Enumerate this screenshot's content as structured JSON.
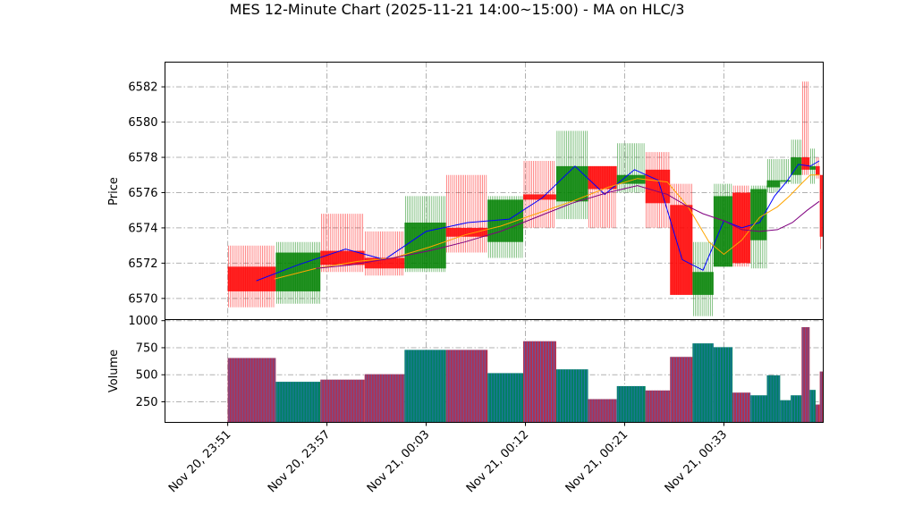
{
  "chart_data": {
    "title": "MES 12-Minute Chart (2025-11-21 14:00~15:00) - MA on HLC/3",
    "price_panel": {
      "type": "candlestick",
      "ylabel": "Price",
      "ylim": [
        6568.8,
        6583.4
      ],
      "yticks": [
        6570,
        6572,
        6574,
        6576,
        6578,
        6580,
        6582
      ],
      "grid": true
    },
    "volume_panel": {
      "type": "bar",
      "ylabel": "Volume",
      "ylim": [
        60,
        1010
      ],
      "yticks": [
        250,
        500,
        750,
        1000
      ],
      "grid": true
    },
    "xlim": [
      0,
      1
    ],
    "xticks": [
      {
        "label": "Nov 20, 23:51",
        "pos": 0.052
      },
      {
        "label": "Nov 20, 23:57",
        "pos": 0.2186
      },
      {
        "label": "Nov 21, 00:03",
        "pos": 0.3852
      },
      {
        "label": "Nov 21, 00:12",
        "pos": 0.5518
      },
      {
        "label": "Nov 21, 00:21",
        "pos": 0.7184
      },
      {
        "label": "Nov 21, 00:33",
        "pos": 0.885
      }
    ],
    "colors": {
      "up": "#008000",
      "down": "#ff0000",
      "ma_fast": "#0000ff",
      "ma_mid": "#ffa500",
      "ma_slow": "#800080",
      "vol_up": "#008060",
      "vol_down": "#b03050"
    },
    "candles": [
      {
        "x0": 0.052,
        "x1": 0.1327,
        "open": 6571.8,
        "high": 6573.0,
        "low": 6569.5,
        "close": 6570.4,
        "volume": 655
      },
      {
        "x0": 0.1327,
        "x1": 0.2076,
        "open": 6570.4,
        "high": 6573.2,
        "low": 6569.7,
        "close": 6572.6,
        "volume": 435
      },
      {
        "x0": 0.2076,
        "x1": 0.2818,
        "open": 6572.7,
        "high": 6574.8,
        "low": 6571.5,
        "close": 6571.9,
        "volume": 455
      },
      {
        "x0": 0.2818,
        "x1": 0.3489,
        "open": 6572.3,
        "high": 6573.8,
        "low": 6571.3,
        "close": 6571.7,
        "volume": 505
      },
      {
        "x0": 0.3489,
        "x1": 0.4185,
        "open": 6571.7,
        "high": 6575.8,
        "low": 6571.5,
        "close": 6574.3,
        "volume": 730
      },
      {
        "x0": 0.4185,
        "x1": 0.4883,
        "open": 6574.0,
        "high": 6577.0,
        "low": 6572.6,
        "close": 6573.5,
        "volume": 730
      },
      {
        "x0": 0.4883,
        "x1": 0.5481,
        "open": 6573.2,
        "high": 6575.8,
        "low": 6572.3,
        "close": 6575.6,
        "volume": 515
      },
      {
        "x0": 0.5481,
        "x1": 0.6035,
        "open": 6575.9,
        "high": 6577.8,
        "low": 6574.0,
        "close": 6575.6,
        "volume": 810
      },
      {
        "x0": 0.6035,
        "x1": 0.657,
        "open": 6575.5,
        "high": 6579.5,
        "low": 6574.5,
        "close": 6577.5,
        "volume": 550
      },
      {
        "x0": 0.657,
        "x1": 0.7053,
        "open": 6577.5,
        "high": 6577.5,
        "low": 6574.0,
        "close": 6576.2,
        "volume": 275
      },
      {
        "x0": 0.7053,
        "x1": 0.7533,
        "open": 6576.5,
        "high": 6578.8,
        "low": 6576.0,
        "close": 6577.0,
        "volume": 395
      },
      {
        "x0": 0.7533,
        "x1": 0.7946,
        "open": 6577.3,
        "high": 6578.3,
        "low": 6574.0,
        "close": 6575.4,
        "volume": 355
      },
      {
        "x0": 0.7946,
        "x1": 0.8324,
        "open": 6575.3,
        "high": 6576.5,
        "low": 6570.2,
        "close": 6570.2,
        "volume": 665
      },
      {
        "x0": 0.8324,
        "x1": 0.8677,
        "open": 6570.2,
        "high": 6573.2,
        "low": 6569.0,
        "close": 6571.5,
        "volume": 790
      },
      {
        "x0": 0.8677,
        "x1": 0.8995,
        "open": 6571.8,
        "high": 6576.5,
        "low": 6571.8,
        "close": 6575.8,
        "volume": 755
      },
      {
        "x0": 0.8995,
        "x1": 0.9297,
        "open": 6576.0,
        "high": 6576.4,
        "low": 6571.8,
        "close": 6572.0,
        "volume": 335
      },
      {
        "x0": 0.9297,
        "x1": 0.9572,
        "open": 6573.3,
        "high": 6576.4,
        "low": 6571.7,
        "close": 6576.2,
        "volume": 310
      },
      {
        "x0": 0.9572,
        "x1": 0.9795,
        "open": 6576.3,
        "high": 6577.9,
        "low": 6576.0,
        "close": 6576.7,
        "volume": 495
      },
      {
        "x0": 0.9795,
        "x1": 0.9972,
        "open": 6576.7,
        "high": 6577.9,
        "low": 6576.5,
        "close": 6576.7,
        "volume": 265
      },
      {
        "x0": 0.9972,
        "x1": 1.0155,
        "open": 6577.0,
        "high": 6579.0,
        "low": 6576.5,
        "close": 6578.0,
        "volume": 310
      },
      {
        "x0": 1.0155,
        "x1": 1.029,
        "open": 6578.0,
        "high": 6582.3,
        "low": 6577.0,
        "close": 6577.3,
        "volume": 940
      },
      {
        "x0": 1.029,
        "x1": 1.039,
        "open": 6577.3,
        "high": 6578.5,
        "low": 6576.5,
        "close": 6577.5,
        "volume": 360
      },
      {
        "x0": 1.039,
        "x1": 1.046,
        "open": 6577.5,
        "high": 6578.0,
        "low": 6576.8,
        "close": 6577.0,
        "volume": 225
      },
      {
        "x0": 1.046,
        "x1": 1.051,
        "open": 6577.0,
        "high": 6577.0,
        "low": 6572.8,
        "close": 6573.5,
        "volume": 530
      }
    ],
    "ma_fast": {
      "x": [
        0.1,
        0.17,
        0.25,
        0.315,
        0.385,
        0.455,
        0.525,
        0.58,
        0.635,
        0.685,
        0.735,
        0.775,
        0.815,
        0.85,
        0.885,
        0.915,
        0.945,
        0.97,
        0.99,
        1.01,
        1.03,
        1.045
      ],
      "y": [
        6571.0,
        6571.9,
        6572.8,
        6572.2,
        6573.8,
        6574.3,
        6574.5,
        6575.7,
        6577.5,
        6575.9,
        6577.3,
        6576.7,
        6572.2,
        6571.6,
        6574.4,
        6574.0,
        6574.3,
        6575.8,
        6576.6,
        6577.6,
        6577.5,
        6577.8
      ]
    },
    "ma_mid": {
      "x": [
        0.13,
        0.2,
        0.27,
        0.33,
        0.39,
        0.45,
        0.51,
        0.57,
        0.63,
        0.69,
        0.74,
        0.79,
        0.825,
        0.86,
        0.885,
        0.915,
        0.945,
        0.975,
        0.995,
        1.015,
        1.03,
        1.045
      ],
      "y": [
        6571.1,
        6571.7,
        6572.1,
        6572.3,
        6572.9,
        6573.6,
        6574.1,
        6574.8,
        6575.5,
        6576.3,
        6576.8,
        6576.6,
        6575.2,
        6573.2,
        6572.5,
        6573.3,
        6574.6,
        6575.2,
        6575.8,
        6576.5,
        6577.0,
        6577.0
      ]
    },
    "ma_slow": {
      "x": [
        0.2,
        0.26,
        0.33,
        0.39,
        0.45,
        0.51,
        0.57,
        0.63,
        0.69,
        0.74,
        0.79,
        0.82,
        0.85,
        0.885,
        0.915,
        0.945,
        0.975,
        1.0,
        1.025,
        1.045
      ],
      "y": [
        6571.7,
        6571.9,
        6572.3,
        6572.7,
        6573.2,
        6573.8,
        6574.6,
        6575.4,
        6576.0,
        6576.4,
        6575.9,
        6575.3,
        6574.8,
        6574.4,
        6573.9,
        6573.8,
        6573.9,
        6574.3,
        6575.0,
        6575.5
      ]
    }
  }
}
